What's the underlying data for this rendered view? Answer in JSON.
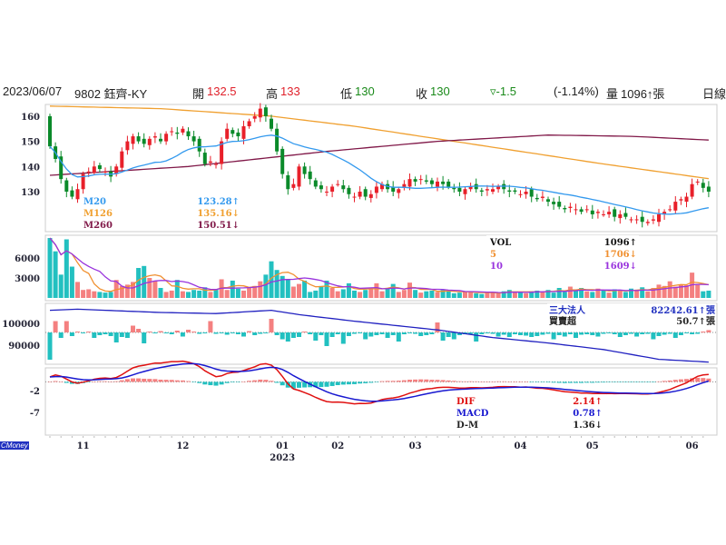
{
  "header": {
    "date": "2023/06/07",
    "stock": "9802 鈺齊-KY",
    "open_label": "開",
    "open": "132.5",
    "high_label": "高",
    "high": "133",
    "low_label": "低",
    "low": "130",
    "close_label": "收",
    "close": "130",
    "change": "▿-1.5",
    "change_pct": "(-1.14%)",
    "volume_label": "量",
    "volume": "1096↑張",
    "period": "日線"
  },
  "watermark": "CMoney",
  "colors": {
    "up": "#e8202a",
    "down": "#0b8a2a",
    "vol_up": "#f48080",
    "vol_down": "#22c0c0",
    "m20": "#3399ee",
    "m126": "#f0a030",
    "m260": "#801848",
    "vma5": "#f09030",
    "vma10": "#9933dd",
    "hold": "#2020c0",
    "dif": "#e01010",
    "macd": "#1818d0"
  },
  "chart_data": {
    "type": "candlestick",
    "x_ticks": [
      {
        "i": 6,
        "label": "11"
      },
      {
        "i": 24,
        "label": "12"
      },
      {
        "i": 42,
        "label": "01"
      },
      {
        "i": 52,
        "label": "02"
      },
      {
        "i": 66,
        "label": "03"
      },
      {
        "i": 85,
        "label": "04"
      },
      {
        "i": 98,
        "label": "05"
      },
      {
        "i": 116,
        "label": "06"
      }
    ],
    "year_label": {
      "i": 42,
      "label": "2023"
    },
    "price": {
      "yticks": [
        160,
        150,
        140,
        130
      ],
      "ylim": [
        122,
        165
      ],
      "first_open": 160,
      "close": [
        148,
        143,
        135,
        130,
        128,
        131,
        137,
        138,
        140,
        139,
        138,
        136,
        140,
        146,
        150,
        152,
        150,
        149,
        151,
        152,
        150,
        153,
        154,
        153,
        155,
        152,
        150,
        146,
        141,
        142,
        141,
        150,
        155,
        153,
        152,
        156,
        158,
        160,
        163,
        160,
        155,
        146,
        137,
        131,
        133,
        140,
        137,
        135,
        132,
        131,
        130,
        132,
        133,
        131,
        129,
        128,
        130,
        128,
        129,
        132,
        133,
        131,
        130,
        131,
        133,
        135,
        134,
        135,
        134,
        133,
        134,
        133,
        132,
        131,
        130,
        131,
        132,
        131,
        130,
        131,
        131,
        132,
        131,
        130,
        130,
        129,
        130,
        128,
        127,
        128,
        126,
        125,
        124,
        123,
        124,
        123,
        122,
        123,
        121,
        122,
        121,
        122,
        120,
        121,
        120,
        119,
        119,
        118,
        118,
        119,
        121,
        122,
        123,
        126,
        127,
        128,
        133,
        134,
        131.5,
        130
      ],
      "m126": [
        {
          "i": 0,
          "v": 164
        },
        {
          "i": 20,
          "v": 163
        },
        {
          "i": 40,
          "v": 160
        },
        {
          "i": 55,
          "v": 156
        },
        {
          "i": 70,
          "v": 151
        },
        {
          "i": 85,
          "v": 146
        },
        {
          "i": 100,
          "v": 141
        },
        {
          "i": 119,
          "v": 135.16
        }
      ],
      "m260": [
        {
          "i": 0,
          "v": 136.5
        },
        {
          "i": 25,
          "v": 140
        },
        {
          "i": 50,
          "v": 146
        },
        {
          "i": 70,
          "v": 150
        },
        {
          "i": 90,
          "v": 152.5
        },
        {
          "i": 105,
          "v": 152
        },
        {
          "i": 119,
          "v": 150.51
        }
      ],
      "legend": [
        {
          "name": "M20",
          "value": "123.28↑"
        },
        {
          "name": "M126",
          "value": "135.16↓"
        },
        {
          "name": "M260",
          "value": "150.51↓"
        }
      ]
    },
    "volume": {
      "yticks": [
        6000,
        3000
      ],
      "ylim": [
        0,
        9000
      ],
      "values": [
        9000,
        7000,
        3500,
        8800,
        4700,
        2400,
        1200,
        1300,
        1000,
        900,
        800,
        900,
        2700,
        1800,
        2000,
        2400,
        4500,
        4800,
        3000,
        2600,
        1500,
        900,
        1100,
        2700,
        1000,
        900,
        1200,
        1100,
        1600,
        900,
        1300,
        2800,
        1200,
        2600,
        1400,
        1100,
        1600,
        1800,
        2500,
        3500,
        5500,
        4200,
        3300,
        2800,
        1700,
        2100,
        2600,
        900,
        1100,
        1800,
        2600,
        1500,
        1000,
        1300,
        2200,
        1100,
        900,
        1200,
        1500,
        2200,
        1000,
        1400,
        2100,
        900,
        1200,
        2300,
        1200,
        800,
        1000,
        1100,
        900,
        1200,
        1100,
        700,
        800,
        900,
        1000,
        700,
        600,
        800,
        900,
        700,
        1000,
        1200,
        800,
        900,
        700,
        1000,
        1100,
        900,
        1200,
        800,
        1500,
        900,
        1700,
        1100,
        1500,
        1000,
        900,
        1400,
        1100,
        800,
        1300,
        1100,
        900,
        1400,
        1200,
        1600,
        1000,
        1500,
        2000,
        1800,
        2500,
        1700,
        2000,
        1900,
        3800,
        2100,
        1000,
        1096
      ],
      "legend": [
        {
          "name": "VOL",
          "value": "1096↑"
        },
        {
          "name": "5",
          "value": "1706↓"
        },
        {
          "name": "10",
          "value": "1609↓"
        }
      ]
    },
    "institutional": {
      "yticks": [
        100000,
        90000
      ],
      "net": [
        -600,
        250,
        -120,
        250,
        -80,
        0,
        -20,
        10,
        -120,
        -60,
        -40,
        -80,
        -220,
        -100,
        -120,
        150,
        80,
        -240,
        20,
        -10,
        30,
        -10,
        -40,
        40,
        -90,
        60,
        20,
        -30,
        -10,
        250,
        -30,
        -20,
        -50,
        -10,
        -40,
        -90,
        30,
        -60,
        -30,
        -20,
        300,
        -60,
        -150,
        -200,
        -120,
        -100,
        20,
        -40,
        -180,
        -60,
        -300,
        -100,
        -40,
        -250,
        -80,
        -30,
        -20,
        -150,
        -90,
        -60,
        -40,
        -120,
        -60,
        -200,
        -40,
        -20,
        -30,
        -80,
        -60,
        -40,
        220,
        -180,
        -100,
        -150,
        -60,
        -40,
        -30,
        -200,
        -40,
        -20,
        -30,
        -90,
        -50,
        -100,
        -40,
        -60,
        -70,
        -100,
        -80,
        -50,
        -30,
        -150,
        -60,
        -90,
        -40,
        -120,
        -50,
        -40,
        -60,
        -90,
        -30,
        -20,
        -40,
        -100,
        -60,
        -30,
        -90,
        -40,
        -30,
        -150,
        -80,
        -50,
        -30,
        -120,
        -60,
        -20,
        -40,
        -30,
        20,
        50.7
      ],
      "holdings": [
        {
          "i": 0,
          "v": 106000
        },
        {
          "i": 5,
          "v": 106500
        },
        {
          "i": 20,
          "v": 105000
        },
        {
          "i": 30,
          "v": 104500
        },
        {
          "i": 40,
          "v": 106000
        },
        {
          "i": 45,
          "v": 104000
        },
        {
          "i": 55,
          "v": 101000
        },
        {
          "i": 70,
          "v": 97000
        },
        {
          "i": 80,
          "v": 93500
        },
        {
          "i": 90,
          "v": 91000
        },
        {
          "i": 100,
          "v": 88000
        },
        {
          "i": 110,
          "v": 83500
        },
        {
          "i": 119,
          "v": 82242.61
        }
      ],
      "legend": [
        {
          "name": "三大法人",
          "value": "82242.61↑張"
        },
        {
          "name": "買賣超",
          "value": "50.7↑張"
        }
      ]
    },
    "macd": {
      "yticks": [
        -2,
        -7
      ],
      "legend": [
        {
          "name": "DIF",
          "value": "2.14↑"
        },
        {
          "name": "MACD",
          "value": "0.78↑"
        },
        {
          "name": "D-M",
          "value": "1.36↓"
        }
      ]
    }
  }
}
